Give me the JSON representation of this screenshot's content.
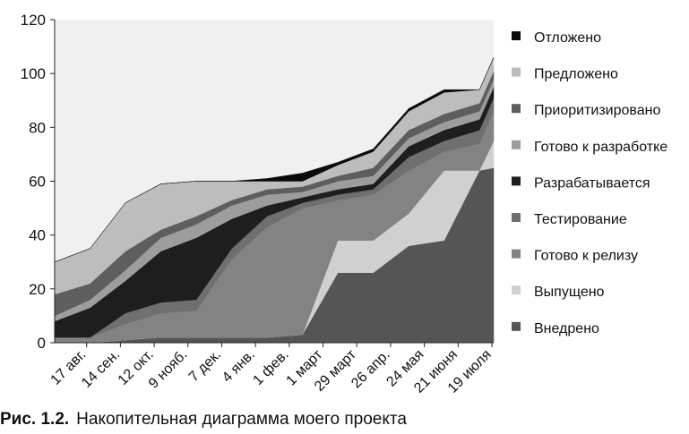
{
  "chart_data": {
    "type": "area",
    "stacked": true,
    "ylim": [
      0,
      120
    ],
    "yticks": [
      0,
      20,
      40,
      60,
      80,
      100,
      120
    ],
    "grid": false,
    "legend_position": "right",
    "categories": [
      "17 авг.",
      "14 сен.",
      "12 окт.",
      "9 нояб.",
      "7 дек.",
      "4 янв.",
      "1 фев.",
      "1 март",
      "29 март",
      "26 апр.",
      "24 мая",
      "21 июня",
      "19 июля"
    ],
    "x": [
      0,
      2,
      4,
      6,
      8,
      10,
      12,
      14,
      16,
      18,
      20,
      22,
      24,
      24.8
    ],
    "series": [
      {
        "name": "Внедрено",
        "color": "#555555",
        "values": [
          0,
          0,
          1,
          2,
          2,
          2,
          2,
          3,
          26,
          26,
          36,
          38,
          64,
          65
        ]
      },
      {
        "name": "Выпущено",
        "color": "#d0d0d0",
        "values": [
          0,
          0,
          0,
          0,
          0,
          0,
          0,
          0,
          12,
          12,
          12,
          26,
          0,
          10
        ]
      },
      {
        "name": "Готово к релизу",
        "color": "#838383",
        "values": [
          2,
          2,
          6,
          9,
          10,
          29,
          41,
          47,
          15,
          17,
          16,
          7,
          10,
          11
        ]
      },
      {
        "name": "Тестирование",
        "color": "#6f6f6f",
        "values": [
          0,
          0,
          4,
          4,
          4,
          4,
          4,
          2,
          2,
          2,
          5,
          4,
          5,
          5
        ]
      },
      {
        "name": "Разрабатывается",
        "color": "#1e1e1e",
        "values": [
          6,
          11,
          12,
          19,
          23,
          11,
          4,
          2,
          2,
          2,
          4,
          4,
          4,
          4
        ]
      },
      {
        "name": "Готово к разработке",
        "color": "#9d9d9d",
        "values": [
          2,
          3,
          4,
          5,
          5,
          5,
          4,
          2,
          3,
          3,
          3,
          3,
          3,
          3
        ]
      },
      {
        "name": "Приоритизировано",
        "color": "#5e5e5e",
        "values": [
          8,
          6,
          7,
          3,
          3,
          2,
          2,
          2,
          2,
          3,
          3,
          3,
          3,
          3
        ]
      },
      {
        "name": "Предложено",
        "color": "#bdbdbd",
        "values": [
          12,
          13,
          18,
          17,
          13,
          7,
          3,
          2,
          4,
          6,
          7,
          8,
          5,
          5
        ]
      },
      {
        "name": "Отложено",
        "color": "#0a0a0a",
        "values": [
          0,
          0,
          0,
          0,
          0,
          0,
          1,
          3,
          1,
          1,
          1,
          1,
          0,
          0
        ]
      }
    ],
    "legend_order": [
      "Отложено",
      "Предложено",
      "Приоритизировано",
      "Готово к разработке",
      "Разрабатывается",
      "Тестирование",
      "Готово к релизу",
      "Выпущено",
      "Внедрено"
    ],
    "plot_background": "#f0f0f0"
  },
  "caption": {
    "label": "Рис. 1.2.",
    "text": "Накопительная диаграмма моего проекта"
  }
}
